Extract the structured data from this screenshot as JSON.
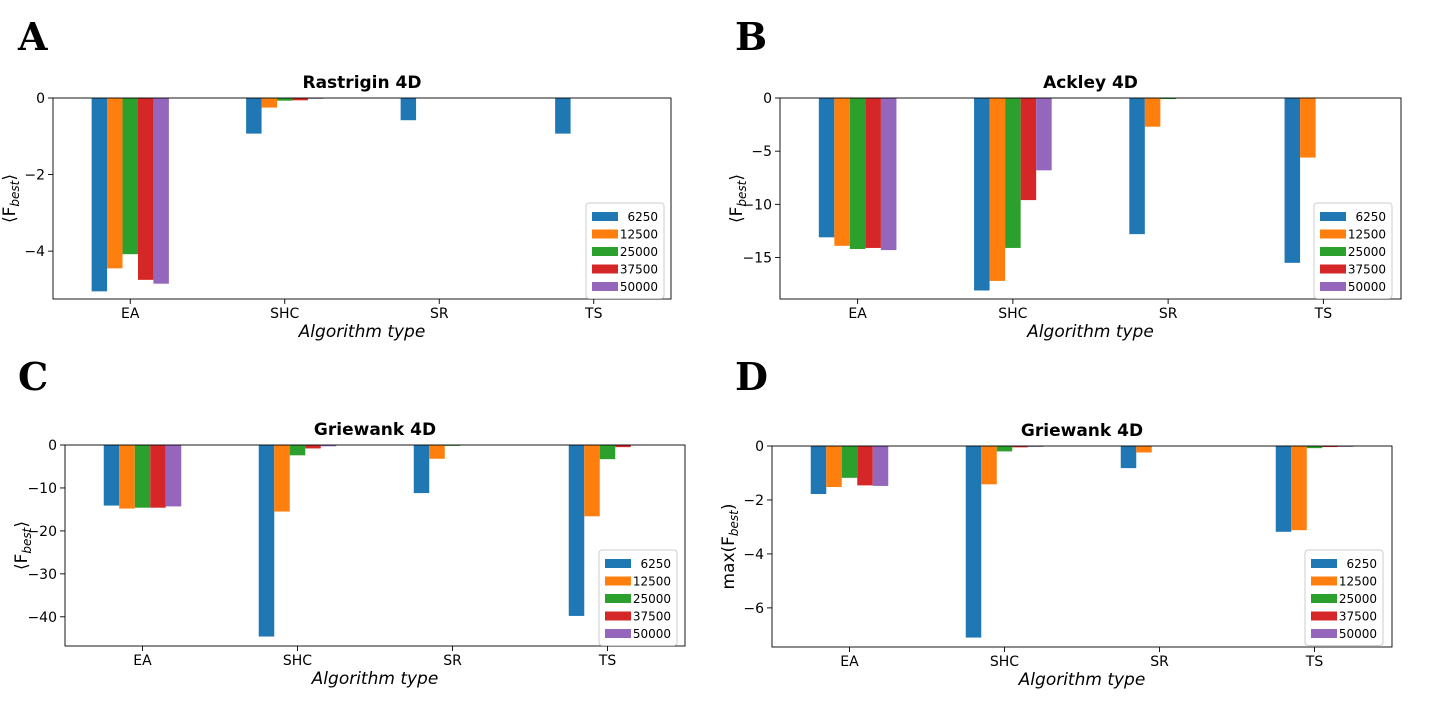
{
  "colors": [
    "#1f77b4",
    "#ff7f0e",
    "#2ca02c",
    "#d62728",
    "#9467bd"
  ],
  "chart_data": [
    {
      "panel": "A",
      "type": "bar",
      "title": "Rastrigin 4D",
      "xlabel": "Algorithm type",
      "ylabel": "⟨F_best⟩",
      "ylabel_main": "⟨F",
      "ylabel_sub": "best",
      "ylabel_end": "⟩",
      "categories": [
        "EA",
        "SHC",
        "SR",
        "TS"
      ],
      "ylim": [
        -5.25,
        0
      ],
      "yticks": [
        0,
        -2,
        -4
      ],
      "ytick_labels": [
        "0",
        "−2",
        "−4"
      ],
      "series": [
        {
          "name": "6250",
          "values": [
            -5.05,
            -0.93,
            -0.58,
            -0.93
          ]
        },
        {
          "name": "12500",
          "values": [
            -4.45,
            -0.25,
            0,
            0
          ]
        },
        {
          "name": "25000",
          "values": [
            -4.08,
            -0.07,
            0,
            0
          ]
        },
        {
          "name": "37500",
          "values": [
            -4.75,
            -0.06,
            0,
            0
          ]
        },
        {
          "name": "50000",
          "values": [
            -4.85,
            -0.02,
            0,
            0
          ]
        }
      ]
    },
    {
      "panel": "B",
      "type": "bar",
      "title": "Ackley 4D",
      "xlabel": "Algorithm type",
      "ylabel": "⟨F_best⟩",
      "ylabel_main": "⟨F",
      "ylabel_sub": "best",
      "ylabel_end": "⟩",
      "categories": [
        "EA",
        "SHC",
        "SR",
        "TS"
      ],
      "ylim": [
        -18.9,
        0
      ],
      "yticks": [
        0,
        -5,
        -10,
        -15
      ],
      "ytick_labels": [
        "0",
        "−5",
        "−10",
        "−15"
      ],
      "series": [
        {
          "name": "6250",
          "values": [
            -13.1,
            -18.1,
            -12.8,
            -15.5
          ]
        },
        {
          "name": "12500",
          "values": [
            -13.9,
            -17.2,
            -2.7,
            -5.6
          ]
        },
        {
          "name": "25000",
          "values": [
            -14.2,
            -14.1,
            -0.1,
            0
          ]
        },
        {
          "name": "37500",
          "values": [
            -14.1,
            -9.6,
            0,
            0
          ]
        },
        {
          "name": "50000",
          "values": [
            -14.3,
            -6.8,
            0,
            0
          ]
        }
      ]
    },
    {
      "panel": "C",
      "type": "bar",
      "title": "Griewank 4D",
      "xlabel": "Algorithm type",
      "ylabel": "⟨F_best⟩",
      "ylabel_main": "⟨F",
      "ylabel_sub": "best",
      "ylabel_end": "⟩",
      "categories": [
        "EA",
        "SHC",
        "SR",
        "TS"
      ],
      "ylim": [
        -46.8,
        0
      ],
      "yticks": [
        0,
        -10,
        -20,
        -30,
        -40
      ],
      "ytick_labels": [
        "0",
        "−10",
        "−20",
        "−30",
        "−40"
      ],
      "series": [
        {
          "name": "6250",
          "values": [
            -14.1,
            -44.6,
            -11.2,
            -39.8
          ]
        },
        {
          "name": "12500",
          "values": [
            -14.8,
            -15.5,
            -3.2,
            -16.6
          ]
        },
        {
          "name": "25000",
          "values": [
            -14.6,
            -2.4,
            -0.2,
            -3.3
          ]
        },
        {
          "name": "37500",
          "values": [
            -14.6,
            -0.8,
            0,
            -0.5
          ]
        },
        {
          "name": "50000",
          "values": [
            -14.3,
            -0.3,
            0,
            -0.1
          ]
        }
      ]
    },
    {
      "panel": "D",
      "type": "bar",
      "title": "Griewank 4D",
      "xlabel": "Algorithm type",
      "ylabel": "max(F_best)",
      "ylabel_main": "max(F",
      "ylabel_sub": "best",
      "ylabel_end": ")",
      "categories": [
        "EA",
        "SHC",
        "SR",
        "TS"
      ],
      "ylim": [
        -7.45,
        0
      ],
      "yticks": [
        0,
        -2,
        -4,
        -6
      ],
      "ytick_labels": [
        "0",
        "−2",
        "−4",
        "−6"
      ],
      "series": [
        {
          "name": "6250",
          "values": [
            -1.78,
            -7.1,
            -0.82,
            -3.18
          ]
        },
        {
          "name": "12500",
          "values": [
            -1.52,
            -1.42,
            -0.24,
            -3.12
          ]
        },
        {
          "name": "25000",
          "values": [
            -1.18,
            -0.2,
            0,
            -0.08
          ]
        },
        {
          "name": "37500",
          "values": [
            -1.46,
            -0.05,
            0,
            -0.04
          ]
        },
        {
          "name": "50000",
          "values": [
            -1.48,
            -0.03,
            0,
            -0.03
          ]
        }
      ]
    }
  ]
}
